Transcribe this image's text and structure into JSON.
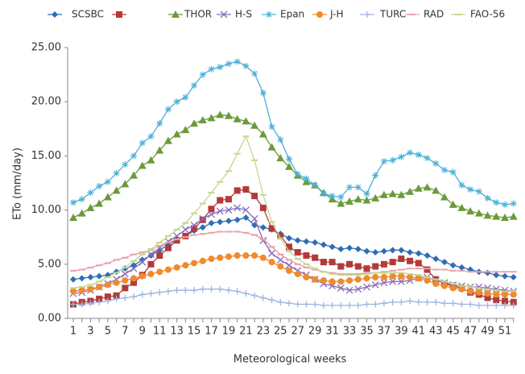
{
  "chart_data": {
    "type": "line",
    "y_label": "ETo (mm/day)",
    "x_label": "Meteorological weeks",
    "categories": [
      "1",
      null,
      "3",
      null,
      "5",
      null,
      "7",
      null,
      "9",
      null,
      "11",
      null,
      "13",
      null,
      "15",
      null,
      "17",
      null,
      "19",
      null,
      "21",
      null,
      "23",
      null,
      "25",
      null,
      "27",
      null,
      "29",
      null,
      "31",
      null,
      "33",
      null,
      "35",
      null,
      "37",
      null,
      "39",
      null,
      "41",
      null,
      "43",
      null,
      "45",
      null,
      "47",
      null,
      "49",
      null,
      "51",
      null
    ],
    "ylim": [
      0,
      25
    ],
    "yticks": [
      {
        "value": 0,
        "label": "0.00"
      },
      {
        "value": 5,
        "label": "5.00"
      },
      {
        "value": 10,
        "label": "10.00"
      },
      {
        "value": 15,
        "label": "15.00"
      },
      {
        "value": 20,
        "label": "20.00"
      },
      {
        "value": 25,
        "label": "25.00"
      }
    ],
    "series": [
      {
        "name": "SCSBC",
        "color": "#2e6db4",
        "marker": "diamond",
        "values": [
          3.6,
          3.7,
          3.8,
          3.9,
          4,
          4.3,
          4.6,
          4.9,
          5.4,
          5.8,
          6.3,
          6.8,
          7.3,
          7.6,
          8.1,
          8.4,
          8.8,
          8.9,
          9,
          9.1,
          9.3,
          8.6,
          8.4,
          8.2,
          7.8,
          7.4,
          7.2,
          7.1,
          7,
          6.8,
          6.6,
          6.4,
          6.5,
          6.4,
          6.2,
          6.1,
          6.2,
          6.3,
          6.3,
          6.1,
          6,
          5.8,
          5.5,
          5.2,
          4.9,
          4.7,
          4.5,
          4.3,
          4.2,
          4,
          3.9,
          3.8
        ]
      },
      {
        "name": null,
        "color": "#b33a3a",
        "marker": "square",
        "values": [
          1.3,
          1.5,
          1.6,
          1.8,
          2,
          2.1,
          2.8,
          3.3,
          4,
          5,
          5.8,
          6.5,
          7.2,
          7.6,
          8.3,
          9.1,
          10.1,
          10.9,
          11,
          11.8,
          11.9,
          11.3,
          10.2,
          8.3,
          7.6,
          6.6,
          6.1,
          5.8,
          5.6,
          5.2,
          5.2,
          4.8,
          5,
          4.8,
          4.6,
          4.8,
          5,
          5.2,
          5.5,
          5.3,
          5.1,
          4.5,
          3.6,
          3.2,
          3,
          2.8,
          2.4,
          2.2,
          1.9,
          1.7,
          1.6,
          1.5
        ]
      },
      {
        "name": "THOR",
        "color": "#6a9a3a",
        "marker": "triangle",
        "values": [
          9.3,
          9.7,
          10.2,
          10.6,
          11.2,
          11.8,
          12.4,
          13.2,
          14.1,
          14.6,
          15.5,
          16.4,
          17,
          17.4,
          18,
          18.3,
          18.5,
          18.8,
          18.7,
          18.4,
          18.2,
          17.8,
          17,
          15.8,
          14.8,
          14,
          13.2,
          12.6,
          12.3,
          11.6,
          11,
          10.6,
          10.8,
          11,
          10.9,
          11.1,
          11.4,
          11.5,
          11.4,
          11.7,
          12,
          12.1,
          11.8,
          11.2,
          10.5,
          10.2,
          9.9,
          9.7,
          9.5,
          9.4,
          9.3,
          9.4
        ]
      },
      {
        "name": "H-S",
        "color": "#8a6bb8",
        "marker": "x",
        "values": [
          2.3,
          2.4,
          2.6,
          2.9,
          3.2,
          3.6,
          4.1,
          4.6,
          5.2,
          5.9,
          6.5,
          7.1,
          7.6,
          8.2,
          8.6,
          9.2,
          9.6,
          9.9,
          10,
          10.2,
          10,
          9.2,
          7.2,
          6,
          5.4,
          4.9,
          4.4,
          4,
          3.6,
          3.2,
          3,
          2.8,
          2.6,
          2.7,
          2.9,
          3.1,
          3.3,
          3.4,
          3.4,
          3.5,
          3.7,
          3.8,
          3.5,
          3.3,
          3.1,
          3,
          2.9,
          2.9,
          2.8,
          2.7,
          2.6,
          2.5
        ]
      },
      {
        "name": "Epan",
        "color": "#4bb0d8",
        "marker": "star",
        "values": [
          10.7,
          11,
          11.6,
          12.2,
          12.6,
          13.4,
          14.2,
          15,
          16.2,
          16.8,
          18,
          19.3,
          20,
          20.4,
          21.5,
          22.5,
          23,
          23.2,
          23.5,
          23.7,
          23.3,
          22.6,
          20.8,
          17.7,
          16.5,
          14.7,
          13.3,
          12.9,
          12.3,
          11.5,
          11.3,
          11.2,
          12.1,
          12.1,
          11.5,
          13.2,
          14.5,
          14.6,
          14.9,
          15.3,
          15.1,
          14.8,
          14.3,
          13.7,
          13.5,
          12.3,
          11.9,
          11.7,
          11.1,
          10.7,
          10.5,
          10.6
        ]
      },
      {
        "name": "J-H",
        "color": "#f08a2c",
        "marker": "circle",
        "values": [
          2.5,
          2.6,
          2.7,
          2.9,
          3.1,
          3.3,
          3.5,
          3.7,
          3.9,
          4.1,
          4.3,
          4.5,
          4.7,
          4.9,
          5.1,
          5.3,
          5.5,
          5.6,
          5.7,
          5.8,
          5.8,
          5.8,
          5.6,
          5.2,
          4.8,
          4.4,
          4.1,
          3.8,
          3.6,
          3.5,
          3.4,
          3.4,
          3.5,
          3.6,
          3.7,
          3.8,
          3.8,
          3.9,
          3.9,
          3.8,
          3.7,
          3.5,
          3.2,
          3,
          2.8,
          2.7,
          2.5,
          2.4,
          2.3,
          2.2,
          2.2,
          2.2
        ]
      },
      {
        "name": "TURC",
        "color": "#9fb4e0",
        "marker": "plus",
        "values": [
          1.3,
          1.3,
          1.4,
          1.5,
          1.6,
          1.8,
          1.9,
          2,
          2.2,
          2.3,
          2.4,
          2.5,
          2.6,
          2.6,
          2.6,
          2.7,
          2.7,
          2.7,
          2.6,
          2.5,
          2.3,
          2.1,
          1.9,
          1.7,
          1.5,
          1.4,
          1.3,
          1.3,
          1.3,
          1.2,
          1.2,
          1.2,
          1.2,
          1.2,
          1.3,
          1.3,
          1.4,
          1.5,
          1.5,
          1.6,
          1.5,
          1.5,
          1.5,
          1.4,
          1.4,
          1.3,
          1.3,
          1.2,
          1.2,
          1.2,
          1.2,
          1.2
        ]
      },
      {
        "name": "RAD",
        "color": "#e8a0a8",
        "marker": "dash",
        "values": [
          4.4,
          4.5,
          4.7,
          4.9,
          5.1,
          5.4,
          5.6,
          5.9,
          6.1,
          6.3,
          6.7,
          7,
          7.3,
          7.5,
          7.7,
          7.8,
          7.9,
          8,
          8,
          8,
          7.9,
          7.7,
          7.3,
          6.6,
          5.9,
          5.4,
          5,
          4.7,
          4.5,
          4.3,
          4.2,
          4.1,
          4.1,
          4.1,
          4.2,
          4.2,
          4.3,
          4.4,
          4.5,
          4.6,
          4.6,
          4.6,
          4.5,
          4.5,
          4.4,
          4.4,
          4.3,
          4.3,
          4.3,
          4.3,
          4.3,
          4.3
        ]
      },
      {
        "name": "FAO-56",
        "color": "#c4d88a",
        "marker": "dash",
        "values": [
          2.8,
          2.9,
          3.1,
          3.4,
          3.8,
          4.2,
          4.7,
          5.3,
          5.9,
          6.4,
          7,
          7.6,
          8.2,
          8.8,
          9.7,
          10.6,
          11.6,
          12.6,
          13.6,
          15.2,
          16.8,
          14.6,
          11.4,
          8.9,
          7.4,
          6.2,
          5.5,
          5,
          4.6,
          4.3,
          4.1,
          4,
          4,
          4,
          4.1,
          4.2,
          4.2,
          4.2,
          4.2,
          4.1,
          4,
          3.8,
          3.6,
          3.4,
          3.2,
          3,
          2.9,
          2.8,
          2.7,
          2.6,
          2.5,
          2.5
        ]
      }
    ]
  }
}
